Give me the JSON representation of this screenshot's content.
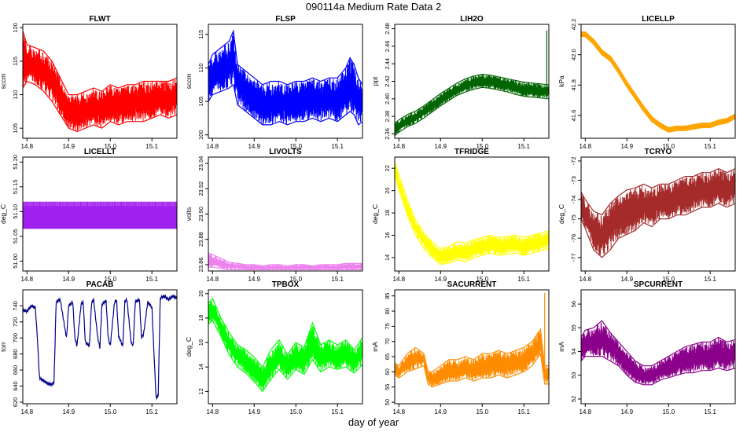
{
  "title": "090114a   Medium Rate Data 2",
  "xlabel": "day of year",
  "chart_data": [
    {
      "type": "line",
      "name": "FLWT",
      "title": "FLWT",
      "ylabel": "sccm",
      "color": "#ff0000",
      "xlim": [
        14.79,
        15.16
      ],
      "ylim": [
        103.5,
        120.5
      ],
      "xticks": [
        14.8,
        14.9,
        15.0,
        15.1
      ],
      "yticks": [
        105,
        110,
        115,
        120
      ],
      "band": "wide",
      "x": [
        14.79,
        14.8,
        14.82,
        14.84,
        14.86,
        14.88,
        14.9,
        14.92,
        14.94,
        14.96,
        14.98,
        15.0,
        15.02,
        15.04,
        15.06,
        15.08,
        15.1,
        15.12,
        15.14,
        15.16
      ],
      "low": [
        111.0,
        112.0,
        111.5,
        110.5,
        109.0,
        107.0,
        105.0,
        104.5,
        105.0,
        105.5,
        105.0,
        106.0,
        105.5,
        106.0,
        106.0,
        106.0,
        106.5,
        107.0,
        106.5,
        107.0
      ],
      "high": [
        119.5,
        117.5,
        117.0,
        116.5,
        115.0,
        112.5,
        110.0,
        110.0,
        110.5,
        111.0,
        110.5,
        111.5,
        111.0,
        111.5,
        111.5,
        112.0,
        112.0,
        112.0,
        112.0,
        112.5
      ]
    },
    {
      "type": "line",
      "name": "FLSP",
      "title": "FLSP",
      "ylabel": "sccm",
      "color": "#0000ff",
      "xlim": [
        14.79,
        15.16
      ],
      "ylim": [
        99.5,
        116.5
      ],
      "xticks": [
        14.8,
        14.9,
        15.0,
        15.1
      ],
      "yticks": [
        100,
        105,
        110,
        115
      ],
      "band": "wide",
      "x": [
        14.79,
        14.8,
        14.82,
        14.84,
        14.85,
        14.86,
        14.88,
        14.9,
        14.92,
        14.94,
        14.96,
        14.98,
        15.0,
        15.02,
        15.04,
        15.06,
        15.08,
        15.1,
        15.12,
        15.13,
        15.14,
        15.15,
        15.16
      ],
      "low": [
        105.0,
        106.0,
        106.5,
        107.0,
        107.5,
        104.5,
        103.5,
        102.5,
        101.5,
        101.5,
        102.0,
        101.5,
        102.0,
        102.0,
        102.5,
        102.0,
        102.5,
        102.0,
        103.0,
        103.5,
        103.0,
        101.5,
        102.0
      ],
      "high": [
        110.5,
        112.0,
        113.0,
        114.0,
        115.5,
        110.5,
        109.5,
        108.5,
        107.5,
        108.0,
        108.0,
        107.5,
        108.0,
        108.0,
        108.5,
        108.0,
        108.5,
        108.5,
        110.0,
        111.5,
        110.5,
        108.5,
        107.5
      ]
    },
    {
      "type": "line",
      "name": "LIH2O",
      "title": "LIH2O",
      "ylabel": "ppt",
      "color": "#006400",
      "xlim": [
        14.79,
        15.16
      ],
      "ylim": [
        2.355,
        2.485
      ],
      "xticks": [
        14.8,
        14.9,
        15.0,
        15.1
      ],
      "yticks": [
        2.36,
        2.38,
        2.4,
        2.42,
        2.44,
        2.46,
        2.48
      ],
      "band": "narrow",
      "spike": {
        "x": 15.155,
        "y": 2.478
      },
      "x": [
        14.79,
        14.8,
        14.82,
        14.84,
        14.86,
        14.88,
        14.9,
        14.92,
        14.94,
        14.96,
        14.98,
        15.0,
        15.02,
        15.04,
        15.06,
        15.08,
        15.1,
        15.12,
        15.14,
        15.16
      ],
      "low": [
        2.358,
        2.362,
        2.368,
        2.372,
        2.378,
        2.385,
        2.392,
        2.398,
        2.404,
        2.408,
        2.411,
        2.413,
        2.412,
        2.41,
        2.408,
        2.405,
        2.403,
        2.402,
        2.401,
        2.4
      ],
      "high": [
        2.372,
        2.376,
        2.382,
        2.386,
        2.392,
        2.399,
        2.406,
        2.412,
        2.418,
        2.423,
        2.426,
        2.428,
        2.427,
        2.425,
        2.423,
        2.421,
        2.419,
        2.418,
        2.417,
        2.416
      ]
    },
    {
      "type": "line",
      "name": "LICELLP",
      "title": "LICELLP",
      "ylabel": "kPa",
      "color": "#ffa500",
      "xlim": [
        14.79,
        15.16
      ],
      "ylim": [
        41.45,
        42.2
      ],
      "xticks": [
        14.8,
        14.9,
        15.0,
        15.1
      ],
      "yticks": [
        41.6,
        41.8,
        42.0,
        42.2
      ],
      "band": "thin",
      "x": [
        14.79,
        14.8,
        14.82,
        14.84,
        14.86,
        14.88,
        14.9,
        14.92,
        14.94,
        14.96,
        14.98,
        15.0,
        15.02,
        15.04,
        15.06,
        15.08,
        15.1,
        15.12,
        15.14,
        15.16
      ],
      "low": [
        42.12,
        42.12,
        42.07,
        42.0,
        41.96,
        41.88,
        41.79,
        41.71,
        41.63,
        41.56,
        41.52,
        41.49,
        41.5,
        41.5,
        41.51,
        41.52,
        41.52,
        41.54,
        41.55,
        41.58
      ],
      "high": [
        42.15,
        42.15,
        42.1,
        42.03,
        41.99,
        41.91,
        41.82,
        41.74,
        41.66,
        41.59,
        41.55,
        41.52,
        41.53,
        41.53,
        41.54,
        41.55,
        41.55,
        41.57,
        41.58,
        41.61
      ]
    },
    {
      "type": "line",
      "name": "LICELLT",
      "title": "LICELLT",
      "ylabel": "deg_C",
      "color": "#a020f0",
      "xlim": [
        14.79,
        15.16
      ],
      "ylim": [
        50.98,
        51.21
      ],
      "xticks": [
        14.8,
        14.9,
        15.0,
        15.1
      ],
      "yticks": [
        51.0,
        51.05,
        51.1,
        51.15,
        51.2
      ],
      "band": "flat",
      "x": [
        14.79,
        15.16
      ],
      "low": [
        51.066,
        51.066
      ],
      "high": [
        51.11,
        51.11
      ],
      "spike_high": 51.12
    },
    {
      "type": "line",
      "name": "LIVOLTS",
      "title": "LIVOLTS",
      "ylabel": "volts",
      "color": "#ee82ee",
      "xlim": [
        14.79,
        15.16
      ],
      "ylim": [
        23.855,
        23.945
      ],
      "xticks": [
        14.8,
        14.9,
        15.0,
        15.1
      ],
      "yticks": [
        23.86,
        23.88,
        23.9,
        23.92,
        23.94
      ],
      "band": "wide",
      "x": [
        14.79,
        14.8,
        14.82,
        14.84,
        14.86,
        14.88,
        14.9,
        14.92,
        14.94,
        14.96,
        14.98,
        15.0,
        15.02,
        15.04,
        15.06,
        15.08,
        15.1,
        15.12,
        15.14,
        15.16
      ],
      "low": [
        23.858,
        23.858,
        23.857,
        23.856,
        23.856,
        23.856,
        23.856,
        23.856,
        23.856,
        23.856,
        23.856,
        23.856,
        23.856,
        23.856,
        23.856,
        23.856,
        23.856,
        23.856,
        23.856,
        23.856
      ],
      "high": [
        23.869,
        23.868,
        23.865,
        23.862,
        23.861,
        23.86,
        23.86,
        23.859,
        23.86,
        23.86,
        23.859,
        23.86,
        23.86,
        23.859,
        23.86,
        23.86,
        23.86,
        23.861,
        23.861,
        23.861
      ]
    },
    {
      "type": "line",
      "name": "TFRIDGE",
      "title": "TFRIDGE",
      "ylabel": "deg_C",
      "color": "#ffff00",
      "xlim": [
        14.79,
        15.16
      ],
      "ylim": [
        12.8,
        23
      ],
      "xticks": [
        14.8,
        14.9,
        15.0,
        15.1
      ],
      "yticks": [
        14,
        16,
        18,
        20,
        22
      ],
      "band": "narrow",
      "x": [
        14.79,
        14.8,
        14.82,
        14.84,
        14.86,
        14.88,
        14.9,
        14.92,
        14.94,
        14.96,
        14.98,
        15.0,
        15.02,
        15.04,
        15.06,
        15.08,
        15.1,
        15.12,
        15.14,
        15.16
      ],
      "low": [
        21.5,
        20.0,
        17.8,
        16.0,
        14.8,
        14.0,
        13.4,
        13.5,
        13.8,
        13.6,
        14.0,
        14.2,
        14.4,
        14.2,
        14.3,
        14.4,
        14.2,
        14.4,
        14.6,
        14.8
      ],
      "high": [
        22.6,
        21.4,
        19.2,
        17.4,
        16.2,
        15.4,
        14.8,
        15.0,
        15.4,
        15.3,
        15.6,
        15.8,
        16.0,
        15.8,
        15.9,
        16.0,
        15.8,
        16.0,
        16.2,
        16.4
      ]
    },
    {
      "type": "line",
      "name": "TCRYO",
      "title": "TCRYO",
      "ylabel": "deg_C",
      "color": "#a52a2a",
      "xlim": [
        14.79,
        15.16
      ],
      "ylim": [
        -77.7,
        -71.8
      ],
      "xticks": [
        14.8,
        14.9,
        15.0,
        15.1
      ],
      "yticks": [
        -77,
        -76,
        -75,
        -74,
        -73,
        -72
      ],
      "band": "wide",
      "x": [
        14.79,
        14.8,
        14.82,
        14.84,
        14.86,
        14.88,
        14.9,
        14.92,
        14.94,
        14.96,
        14.98,
        15.0,
        15.02,
        15.04,
        15.06,
        15.08,
        15.1,
        15.12,
        15.14,
        15.16
      ],
      "low": [
        -75.0,
        -75.5,
        -76.6,
        -77.0,
        -76.6,
        -76.0,
        -75.8,
        -75.6,
        -75.2,
        -75.4,
        -75.0,
        -75.0,
        -74.8,
        -74.8,
        -74.6,
        -74.4,
        -74.4,
        -74.2,
        -74.4,
        -74.2
      ],
      "high": [
        -73.6,
        -74.0,
        -74.6,
        -74.8,
        -74.2,
        -73.8,
        -73.5,
        -73.4,
        -73.2,
        -73.4,
        -73.2,
        -73.2,
        -73.0,
        -72.8,
        -72.8,
        -72.6,
        -72.6,
        -72.4,
        -72.6,
        -72.4
      ]
    },
    {
      "type": "line",
      "name": "PACAB",
      "title": "PACAB",
      "ylabel": "torr",
      "color": "#00008b",
      "xlim": [
        14.79,
        15.16
      ],
      "ylim": [
        618,
        760
      ],
      "xticks": [
        14.8,
        14.9,
        15.0,
        15.1
      ],
      "yticks": [
        620,
        640,
        660,
        680,
        700,
        720,
        740
      ],
      "band": "line",
      "x": [
        14.79,
        14.8,
        14.81,
        14.82,
        14.825,
        14.83,
        14.85,
        14.86,
        14.865,
        14.87,
        14.88,
        14.89,
        14.895,
        14.9,
        14.91,
        14.915,
        14.92,
        14.93,
        14.935,
        14.94,
        14.95,
        14.955,
        14.96,
        14.97,
        14.975,
        14.98,
        14.99,
        14.995,
        15.0,
        15.01,
        15.015,
        15.02,
        15.03,
        15.035,
        15.04,
        15.05,
        15.055,
        15.06,
        15.07,
        15.075,
        15.08,
        15.09,
        15.1,
        15.105,
        15.11,
        15.115,
        15.12,
        15.13,
        15.14,
        15.15,
        15.16
      ],
      "y": [
        735,
        733,
        740,
        738,
        700,
        650,
        643,
        642,
        645,
        745,
        748,
        715,
        700,
        740,
        745,
        700,
        690,
        742,
        745,
        695,
        690,
        744,
        748,
        700,
        688,
        742,
        746,
        700,
        690,
        744,
        748,
        702,
        690,
        746,
        748,
        695,
        690,
        745,
        748,
        700,
        705,
        745,
        738,
        680,
        625,
        628,
        750,
        752,
        748,
        752,
        750
      ]
    },
    {
      "type": "line",
      "name": "TPBOX",
      "title": "TPBOX",
      "ylabel": "deg_C",
      "color": "#00ff00",
      "xlim": [
        14.79,
        15.16
      ],
      "ylim": [
        11,
        20.3
      ],
      "xticks": [
        14.8,
        14.9,
        15.0,
        15.1
      ],
      "yticks": [
        12,
        14,
        16,
        18,
        20
      ],
      "band": "narrow",
      "x": [
        14.79,
        14.8,
        14.82,
        14.84,
        14.86,
        14.88,
        14.9,
        14.92,
        14.94,
        14.96,
        14.98,
        15.0,
        15.02,
        15.04,
        15.06,
        15.08,
        15.1,
        15.12,
        15.14,
        15.16
      ],
      "low": [
        17.5,
        17.8,
        16.5,
        15.0,
        14.0,
        13.5,
        12.8,
        12.0,
        13.0,
        13.8,
        13.0,
        13.8,
        13.4,
        14.6,
        13.6,
        14.0,
        13.8,
        14.0,
        13.5,
        14.2
      ],
      "high": [
        19.2,
        19.6,
        18.0,
        16.8,
        15.8,
        15.4,
        14.8,
        14.0,
        15.4,
        16.2,
        15.0,
        16.0,
        15.6,
        17.6,
        15.8,
        16.2,
        15.8,
        16.2,
        15.4,
        16.4
      ]
    },
    {
      "type": "line",
      "name": "SACURRENT",
      "title": "SACURRENT",
      "ylabel": "mA",
      "color": "#ff8c00",
      "xlim": [
        14.79,
        15.16
      ],
      "ylim": [
        49.5,
        87
      ],
      "xticks": [
        14.8,
        14.9,
        15.0,
        15.1
      ],
      "yticks": [
        50,
        55,
        60,
        65,
        70,
        75,
        80,
        85
      ],
      "band": "wide",
      "spike": {
        "x": 15.15,
        "y": 86
      },
      "x": [
        14.79,
        14.8,
        14.82,
        14.84,
        14.86,
        14.87,
        14.88,
        14.9,
        14.92,
        14.94,
        14.96,
        14.98,
        15.0,
        15.02,
        15.04,
        15.06,
        15.08,
        15.1,
        15.12,
        15.14,
        15.15,
        15.16
      ],
      "low": [
        59,
        58,
        60,
        61,
        62,
        56,
        55,
        56,
        57,
        57,
        58,
        57,
        58,
        58,
        59,
        58,
        59,
        60,
        62,
        66,
        56,
        56
      ],
      "high": [
        63,
        62,
        66,
        68,
        66,
        60,
        60,
        62,
        64,
        64,
        65,
        64,
        66,
        66,
        67,
        66,
        67,
        68,
        70,
        74,
        62,
        62
      ]
    },
    {
      "type": "line",
      "name": "SPCURRENT",
      "title": "SPCURRENT",
      "ylabel": "mA",
      "color": "#8b008b",
      "xlim": [
        14.79,
        15.16
      ],
      "ylim": [
        51.8,
        56.6
      ],
      "xticks": [
        14.8,
        14.9,
        15.0,
        15.1
      ],
      "yticks": [
        52,
        53,
        54,
        55,
        56
      ],
      "band": "wide",
      "x": [
        14.79,
        14.8,
        14.82,
        14.84,
        14.86,
        14.88,
        14.9,
        14.92,
        14.94,
        14.96,
        14.98,
        15.0,
        15.02,
        15.04,
        15.06,
        15.08,
        15.1,
        15.12,
        15.14,
        15.16
      ],
      "low": [
        53.6,
        53.8,
        53.8,
        53.8,
        53.6,
        53.4,
        53.0,
        52.7,
        52.6,
        52.6,
        52.8,
        52.9,
        53.0,
        53.1,
        53.1,
        53.2,
        53.2,
        53.3,
        53.2,
        53.3
      ],
      "high": [
        54.6,
        54.9,
        55.0,
        55.3,
        54.8,
        54.4,
        54.0,
        53.6,
        53.4,
        53.4,
        53.6,
        53.8,
        54.0,
        54.2,
        54.3,
        54.4,
        54.4,
        54.6,
        54.4,
        54.5
      ]
    }
  ]
}
